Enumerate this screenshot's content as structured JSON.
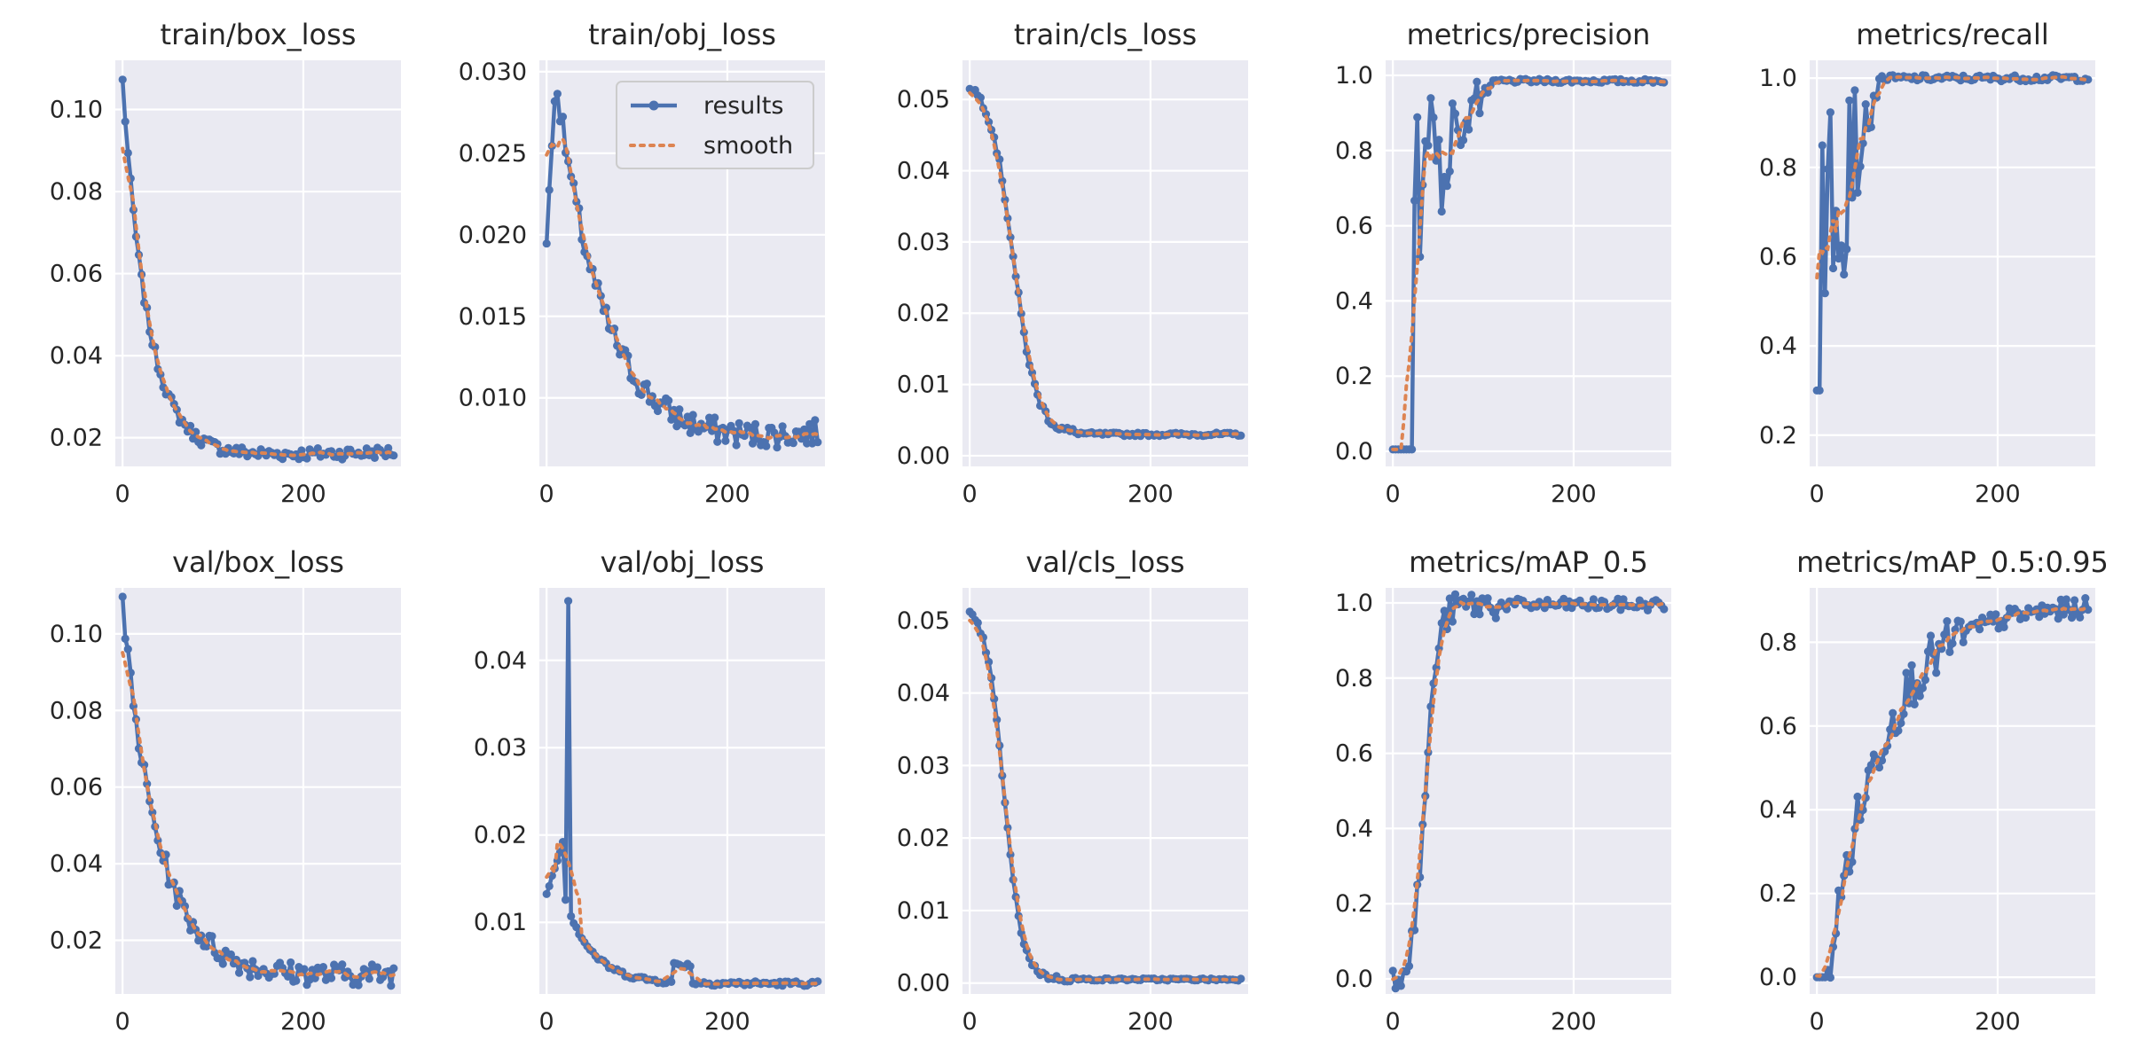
{
  "legend": {
    "results_label": "results",
    "smooth_label": "smooth"
  },
  "chart_data": [
    {
      "type": "line",
      "title": "train/box_loss",
      "xlim": [
        -8,
        308
      ],
      "xticks": [
        0,
        200
      ],
      "ylim": [
        0.013,
        0.112
      ],
      "yticks": [
        0.02,
        0.04,
        0.06,
        0.08,
        0.1
      ],
      "ytick_labels": [
        "0.02",
        "0.04",
        "0.06",
        "0.08",
        "0.10"
      ],
      "series": [
        {
          "name": "results",
          "kind": "decay",
          "x": [
            0,
            300
          ],
          "start": 0.107,
          "end": 0.0175,
          "tau": 28,
          "floor": 0.015,
          "noise": 0.0015
        }
      ]
    },
    {
      "type": "line",
      "title": "train/obj_loss",
      "xlim": [
        -8,
        308
      ],
      "xticks": [
        0,
        200
      ],
      "ylim": [
        0.0058,
        0.0307
      ],
      "yticks": [
        0.01,
        0.015,
        0.02,
        0.025,
        0.03
      ],
      "ytick_labels": [
        "0.010",
        "0.015",
        "0.020",
        "0.025",
        "0.030"
      ],
      "series": [
        {
          "name": "results",
          "kind": "rise-decay",
          "x": [
            0,
            300
          ],
          "start": 0.0195,
          "peak": 0.0296,
          "peak_at": 10,
          "end": 0.0078,
          "tau": 55,
          "floor": 0.006,
          "noise": 0.0008
        }
      ]
    },
    {
      "type": "line",
      "title": "train/cls_loss",
      "xlim": [
        -8,
        308
      ],
      "xticks": [
        0,
        200
      ],
      "ylim": [
        -0.0015,
        0.0555
      ],
      "yticks": [
        0.0,
        0.01,
        0.02,
        0.03,
        0.04,
        0.05
      ],
      "ytick_labels": [
        "0.00",
        "0.01",
        "0.02",
        "0.03",
        "0.04",
        "0.05"
      ],
      "series": [
        {
          "name": "results",
          "kind": "sigmoid",
          "x": [
            0,
            300
          ],
          "start": 0.053,
          "end": 0.003,
          "mid": 48,
          "width": 13,
          "noise": 0.0006
        }
      ]
    },
    {
      "type": "line",
      "title": "metrics/precision",
      "xlim": [
        -8,
        308
      ],
      "xticks": [
        0,
        200
      ],
      "ylim": [
        -0.04,
        1.04
      ],
      "yticks": [
        0.0,
        0.2,
        0.4,
        0.6,
        0.8,
        1.0
      ],
      "ytick_labels": [
        "0.0",
        "0.2",
        "0.4",
        "0.6",
        "0.8",
        "1.0"
      ],
      "series": [
        {
          "name": "results",
          "kind": "step-noisy",
          "x": [
            0,
            300
          ],
          "low": 0.005,
          "high": 0.985,
          "jump_at": 22,
          "settle": 110,
          "noise": 0.35
        }
      ]
    },
    {
      "type": "line",
      "title": "metrics/recall",
      "xlim": [
        -8,
        308
      ],
      "xticks": [
        0,
        200
      ],
      "ylim": [
        0.13,
        1.04
      ],
      "yticks": [
        0.2,
        0.4,
        0.6,
        0.8,
        1.0
      ],
      "ytick_labels": [
        "0.2",
        "0.4",
        "0.6",
        "0.8",
        "1.0"
      ],
      "series": [
        {
          "name": "results",
          "kind": "step-noisy",
          "x": [
            0,
            300
          ],
          "low": 0.3,
          "high": 1.0,
          "jump_at": 5,
          "settle": 70,
          "noise": 0.45
        }
      ]
    },
    {
      "type": "line",
      "title": "val/box_loss",
      "xlim": [
        -8,
        308
      ],
      "xticks": [
        0,
        200
      ],
      "ylim": [
        0.006,
        0.112
      ],
      "yticks": [
        0.02,
        0.04,
        0.06,
        0.08,
        0.1
      ],
      "ytick_labels": [
        "0.02",
        "0.04",
        "0.06",
        "0.08",
        "0.10"
      ],
      "series": [
        {
          "name": "results",
          "kind": "decay",
          "x": [
            0,
            300
          ],
          "start": 0.107,
          "end": 0.0118,
          "tau": 40,
          "floor": 0.01,
          "noise": 0.003
        }
      ]
    },
    {
      "type": "line",
      "title": "val/obj_loss",
      "xlim": [
        -8,
        308
      ],
      "xticks": [
        0,
        200
      ],
      "ylim": [
        0.0018,
        0.0483
      ],
      "yticks": [
        0.01,
        0.02,
        0.03,
        0.04
      ],
      "ytick_labels": [
        "0.01",
        "0.02",
        "0.03",
        "0.04"
      ],
      "series": [
        {
          "name": "results",
          "kind": "spike-decay",
          "x": [
            0,
            300
          ],
          "start": 0.0133,
          "peak": 0.0468,
          "peak_at": 23,
          "end": 0.0034,
          "tau": 30,
          "floor": 0.003,
          "noise": 0.0007
        }
      ]
    },
    {
      "type": "line",
      "title": "val/cls_loss",
      "xlim": [
        -8,
        308
      ],
      "xticks": [
        0,
        200
      ],
      "ylim": [
        -0.0015,
        0.0545
      ],
      "yticks": [
        0.0,
        0.01,
        0.02,
        0.03,
        0.04,
        0.05
      ],
      "ytick_labels": [
        "0.00",
        "0.01",
        "0.02",
        "0.03",
        "0.04",
        "0.05"
      ],
      "series": [
        {
          "name": "results",
          "kind": "sigmoid",
          "x": [
            0,
            300
          ],
          "start": 0.052,
          "end": 0.0005,
          "mid": 38,
          "width": 10,
          "noise": 0.0004
        }
      ]
    },
    {
      "type": "line",
      "title": "metrics/mAP_0.5",
      "xlim": [
        -8,
        308
      ],
      "xticks": [
        0,
        200
      ],
      "ylim": [
        -0.04,
        1.04
      ],
      "yticks": [
        0.0,
        0.2,
        0.4,
        0.6,
        0.8,
        1.0
      ],
      "ytick_labels": [
        "0.0",
        "0.2",
        "0.4",
        "0.6",
        "0.8",
        "1.0"
      ],
      "series": [
        {
          "name": "results",
          "kind": "sigmoid",
          "x": [
            0,
            300
          ],
          "start": 0.0,
          "end": 0.995,
          "mid": 36,
          "width": 7,
          "noise": 0.04
        }
      ]
    },
    {
      "type": "line",
      "title": "metrics/mAP_0.5:0.95",
      "xlim": [
        -8,
        308
      ],
      "xticks": [
        0,
        200
      ],
      "ylim": [
        -0.04,
        0.93
      ],
      "yticks": [
        0.0,
        0.2,
        0.4,
        0.6,
        0.8
      ],
      "ytick_labels": [
        "0.0",
        "0.2",
        "0.4",
        "0.6",
        "0.8"
      ],
      "series": [
        {
          "name": "results",
          "kind": "sat",
          "x": [
            0,
            300
          ],
          "start": 0.0,
          "end": 0.89,
          "delay": 12,
          "tau": 60,
          "noise": 0.06
        }
      ]
    }
  ]
}
